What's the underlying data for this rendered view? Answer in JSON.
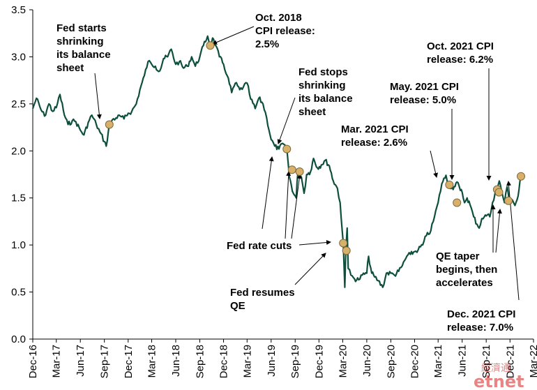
{
  "chart_data": {
    "type": "line",
    "title": "",
    "xlabel": "",
    "ylabel": "",
    "ylim": [
      0.0,
      3.5
    ],
    "xlim": [
      "2016-12-01",
      "2022-03-01"
    ],
    "grid": false,
    "legend": "none",
    "y_ticks": [
      "0.0",
      "0.5",
      "1.0",
      "1.5",
      "2.0",
      "2.5",
      "3.0",
      "3.5"
    ],
    "x_ticks": [
      {
        "label": "Dec-16",
        "date": "2016-12-01"
      },
      {
        "label": "Mar-17",
        "date": "2017-03-01"
      },
      {
        "label": "Jun-17",
        "date": "2017-06-01"
      },
      {
        "label": "Sep-17",
        "date": "2017-09-01"
      },
      {
        "label": "Dec-17",
        "date": "2017-12-01"
      },
      {
        "label": "Mar-18",
        "date": "2018-03-01"
      },
      {
        "label": "Jun-18",
        "date": "2018-06-01"
      },
      {
        "label": "Sep-18",
        "date": "2018-09-01"
      },
      {
        "label": "Dec-18",
        "date": "2018-12-01"
      },
      {
        "label": "Mar-19",
        "date": "2019-03-01"
      },
      {
        "label": "Jun-19",
        "date": "2019-06-01"
      },
      {
        "label": "Sep-19",
        "date": "2019-09-01"
      },
      {
        "label": "Dec-19",
        "date": "2019-12-01"
      },
      {
        "label": "Mar-20",
        "date": "2020-03-01"
      },
      {
        "label": "Jun-20",
        "date": "2020-06-01"
      },
      {
        "label": "Sep-20",
        "date": "2020-09-01"
      },
      {
        "label": "Dec-20",
        "date": "2020-12-01"
      },
      {
        "label": "Mar-21",
        "date": "2021-03-01"
      },
      {
        "label": "Jun-21",
        "date": "2021-06-01"
      },
      {
        "label": "Sep-21",
        "date": "2021-09-01"
      },
      {
        "label": "Dec-21",
        "date": "2021-12-01"
      },
      {
        "label": "Mar-22",
        "date": "2022-03-01"
      }
    ],
    "series": [
      {
        "name": "",
        "color": "#0d4f3c",
        "points": [
          [
            "2016-12-01",
            2.45
          ],
          [
            "2016-12-15",
            2.56
          ],
          [
            "2017-01-01",
            2.44
          ],
          [
            "2017-01-15",
            2.37
          ],
          [
            "2017-02-01",
            2.5
          ],
          [
            "2017-02-15",
            2.42
          ],
          [
            "2017-03-01",
            2.46
          ],
          [
            "2017-03-15",
            2.6
          ],
          [
            "2017-04-01",
            2.38
          ],
          [
            "2017-04-15",
            2.28
          ],
          [
            "2017-05-01",
            2.32
          ],
          [
            "2017-05-15",
            2.31
          ],
          [
            "2017-06-01",
            2.22
          ],
          [
            "2017-06-15",
            2.17
          ],
          [
            "2017-07-01",
            2.3
          ],
          [
            "2017-07-15",
            2.38
          ],
          [
            "2017-08-01",
            2.28
          ],
          [
            "2017-08-15",
            2.2
          ],
          [
            "2017-09-01",
            2.1
          ],
          [
            "2017-09-08",
            2.05
          ],
          [
            "2017-09-20",
            2.28
          ],
          [
            "2017-10-01",
            2.33
          ],
          [
            "2017-10-15",
            2.35
          ],
          [
            "2017-11-01",
            2.37
          ],
          [
            "2017-11-15",
            2.34
          ],
          [
            "2017-12-01",
            2.4
          ],
          [
            "2017-12-15",
            2.42
          ],
          [
            "2018-01-01",
            2.5
          ],
          [
            "2018-01-15",
            2.65
          ],
          [
            "2018-02-01",
            2.8
          ],
          [
            "2018-02-15",
            2.95
          ],
          [
            "2018-03-01",
            2.92
          ],
          [
            "2018-03-15",
            2.9
          ],
          [
            "2018-04-01",
            2.85
          ],
          [
            "2018-04-15",
            2.98
          ],
          [
            "2018-05-01",
            3.0
          ],
          [
            "2018-05-15",
            3.08
          ],
          [
            "2018-06-01",
            2.92
          ],
          [
            "2018-06-15",
            2.95
          ],
          [
            "2018-07-01",
            2.88
          ],
          [
            "2018-07-15",
            2.9
          ],
          [
            "2018-08-01",
            3.0
          ],
          [
            "2018-08-15",
            2.9
          ],
          [
            "2018-09-01",
            3.0
          ],
          [
            "2018-09-15",
            3.12
          ],
          [
            "2018-10-01",
            3.22
          ],
          [
            "2018-10-11",
            3.12
          ],
          [
            "2018-10-20",
            3.2
          ],
          [
            "2018-11-01",
            3.12
          ],
          [
            "2018-11-15",
            3.0
          ],
          [
            "2018-12-01",
            2.92
          ],
          [
            "2018-12-15",
            2.8
          ],
          [
            "2019-01-01",
            2.62
          ],
          [
            "2019-01-15",
            2.72
          ],
          [
            "2019-02-01",
            2.65
          ],
          [
            "2019-02-15",
            2.68
          ],
          [
            "2019-03-01",
            2.72
          ],
          [
            "2019-03-15",
            2.55
          ],
          [
            "2019-04-01",
            2.45
          ],
          [
            "2019-04-15",
            2.56
          ],
          [
            "2019-05-01",
            2.5
          ],
          [
            "2019-05-15",
            2.35
          ],
          [
            "2019-06-01",
            2.12
          ],
          [
            "2019-06-15",
            2.05
          ],
          [
            "2019-07-01",
            2.02
          ],
          [
            "2019-07-15",
            2.08
          ],
          [
            "2019-08-01",
            2.0
          ],
          [
            "2019-08-10",
            1.72
          ],
          [
            "2019-08-25",
            1.55
          ],
          [
            "2019-09-05",
            1.5
          ],
          [
            "2019-09-12",
            1.8
          ],
          [
            "2019-09-25",
            1.72
          ],
          [
            "2019-10-05",
            1.55
          ],
          [
            "2019-10-15",
            1.75
          ],
          [
            "2019-10-30",
            1.78
          ],
          [
            "2019-11-10",
            1.92
          ],
          [
            "2019-11-25",
            1.82
          ],
          [
            "2019-12-10",
            1.85
          ],
          [
            "2019-12-25",
            1.9
          ],
          [
            "2020-01-10",
            1.84
          ],
          [
            "2020-01-25",
            1.68
          ],
          [
            "2020-02-10",
            1.6
          ],
          [
            "2020-02-20",
            1.45
          ],
          [
            "2020-02-28",
            1.15
          ],
          [
            "2020-03-03",
            1.02
          ],
          [
            "2020-03-09",
            0.55
          ],
          [
            "2020-03-13",
            0.95
          ],
          [
            "2020-03-18",
            1.18
          ],
          [
            "2020-03-22",
            0.75
          ],
          [
            "2020-04-01",
            0.68
          ],
          [
            "2020-04-15",
            0.64
          ],
          [
            "2020-05-01",
            0.63
          ],
          [
            "2020-05-15",
            0.68
          ],
          [
            "2020-06-01",
            0.7
          ],
          [
            "2020-06-08",
            0.88
          ],
          [
            "2020-06-20",
            0.7
          ],
          [
            "2020-07-01",
            0.66
          ],
          [
            "2020-07-15",
            0.62
          ],
          [
            "2020-08-01",
            0.55
          ],
          [
            "2020-08-15",
            0.7
          ],
          [
            "2020-09-01",
            0.7
          ],
          [
            "2020-09-15",
            0.68
          ],
          [
            "2020-10-01",
            0.72
          ],
          [
            "2020-10-15",
            0.78
          ],
          [
            "2020-11-01",
            0.88
          ],
          [
            "2020-11-15",
            0.9
          ],
          [
            "2020-12-01",
            0.93
          ],
          [
            "2020-12-15",
            0.95
          ],
          [
            "2021-01-01",
            1.0
          ],
          [
            "2021-01-15",
            1.1
          ],
          [
            "2021-02-01",
            1.15
          ],
          [
            "2021-02-15",
            1.3
          ],
          [
            "2021-03-01",
            1.45
          ],
          [
            "2021-03-15",
            1.65
          ],
          [
            "2021-03-31",
            1.74
          ],
          [
            "2021-04-10",
            1.65
          ],
          [
            "2021-04-20",
            1.6
          ],
          [
            "2021-05-01",
            1.62
          ],
          [
            "2021-05-12",
            1.67
          ],
          [
            "2021-05-25",
            1.58
          ],
          [
            "2021-06-01",
            1.56
          ],
          [
            "2021-06-10",
            1.45
          ],
          [
            "2021-06-20",
            1.5
          ],
          [
            "2021-07-01",
            1.43
          ],
          [
            "2021-07-15",
            1.3
          ],
          [
            "2021-07-28",
            1.22
          ],
          [
            "2021-08-05",
            1.18
          ],
          [
            "2021-08-15",
            1.28
          ],
          [
            "2021-08-25",
            1.3
          ],
          [
            "2021-09-05",
            1.32
          ],
          [
            "2021-09-15",
            1.3
          ],
          [
            "2021-09-25",
            1.45
          ],
          [
            "2021-10-05",
            1.55
          ],
          [
            "2021-10-13",
            1.58
          ],
          [
            "2021-10-21",
            1.68
          ],
          [
            "2021-11-01",
            1.55
          ],
          [
            "2021-11-10",
            1.45
          ],
          [
            "2021-11-20",
            1.62
          ],
          [
            "2021-12-01",
            1.44
          ],
          [
            "2021-12-10",
            1.48
          ],
          [
            "2021-12-20",
            1.42
          ],
          [
            "2022-01-01",
            1.52
          ],
          [
            "2022-01-12",
            1.73
          ],
          [
            "2022-01-15",
            1.76
          ]
        ]
      }
    ],
    "markers": [
      {
        "date": "2017-09-20",
        "value": 2.28
      },
      {
        "date": "2018-10-11",
        "value": 3.12
      },
      {
        "date": "2019-07-31",
        "value": 2.02
      },
      {
        "date": "2019-08-20",
        "value": 1.8
      },
      {
        "date": "2019-09-18",
        "value": 1.78
      },
      {
        "date": "2020-03-03",
        "value": 1.02
      },
      {
        "date": "2020-03-15",
        "value": 0.94
      },
      {
        "date": "2021-04-13",
        "value": 1.64
      },
      {
        "date": "2021-05-12",
        "value": 1.45
      },
      {
        "date": "2021-10-13",
        "value": 1.59
      },
      {
        "date": "2021-10-20",
        "value": 1.56
      },
      {
        "date": "2021-11-25",
        "value": 1.47
      },
      {
        "date": "2022-01-12",
        "value": 1.73
      }
    ],
    "annotations": [
      {
        "id": "fed-shrink-start",
        "lines": [
          "Fed starts",
          "shrinking",
          "its balance",
          "sheet"
        ]
      },
      {
        "id": "oct-2018-cpi",
        "lines": [
          "Oct. 2018",
          "CPI release:",
          "2.5%"
        ]
      },
      {
        "id": "fed-shrink-stop",
        "lines": [
          "Fed stops",
          "shrinking",
          "its balance",
          "sheet"
        ]
      },
      {
        "id": "fed-rate-cuts",
        "lines": [
          "Fed rate cuts"
        ]
      },
      {
        "id": "fed-resumes-qe",
        "lines": [
          "Fed resumes",
          "QE"
        ]
      },
      {
        "id": "mar-2021-cpi",
        "lines": [
          "Mar. 2021 CPI",
          "release: 2.6%"
        ]
      },
      {
        "id": "may-2021-cpi",
        "lines": [
          "May. 2021 CPI",
          "release: 5.0%"
        ]
      },
      {
        "id": "oct-2021-cpi",
        "lines": [
          "Oct. 2021 CPI",
          "release: 6.2%"
        ]
      },
      {
        "id": "qe-taper",
        "lines": [
          "QE taper",
          "begins, then",
          "accelerates"
        ]
      },
      {
        "id": "dec-2021-cpi",
        "lines": [
          "Dec. 2021 CPI",
          "release: 7.0%"
        ]
      }
    ]
  },
  "watermark": {
    "cn": "經濟通",
    "brand": "etnet"
  },
  "colors": {
    "line": "#0d4f3c",
    "marker_fill": "#d9b06a",
    "marker_stroke": "#7a6a3a",
    "text": "#000000"
  }
}
